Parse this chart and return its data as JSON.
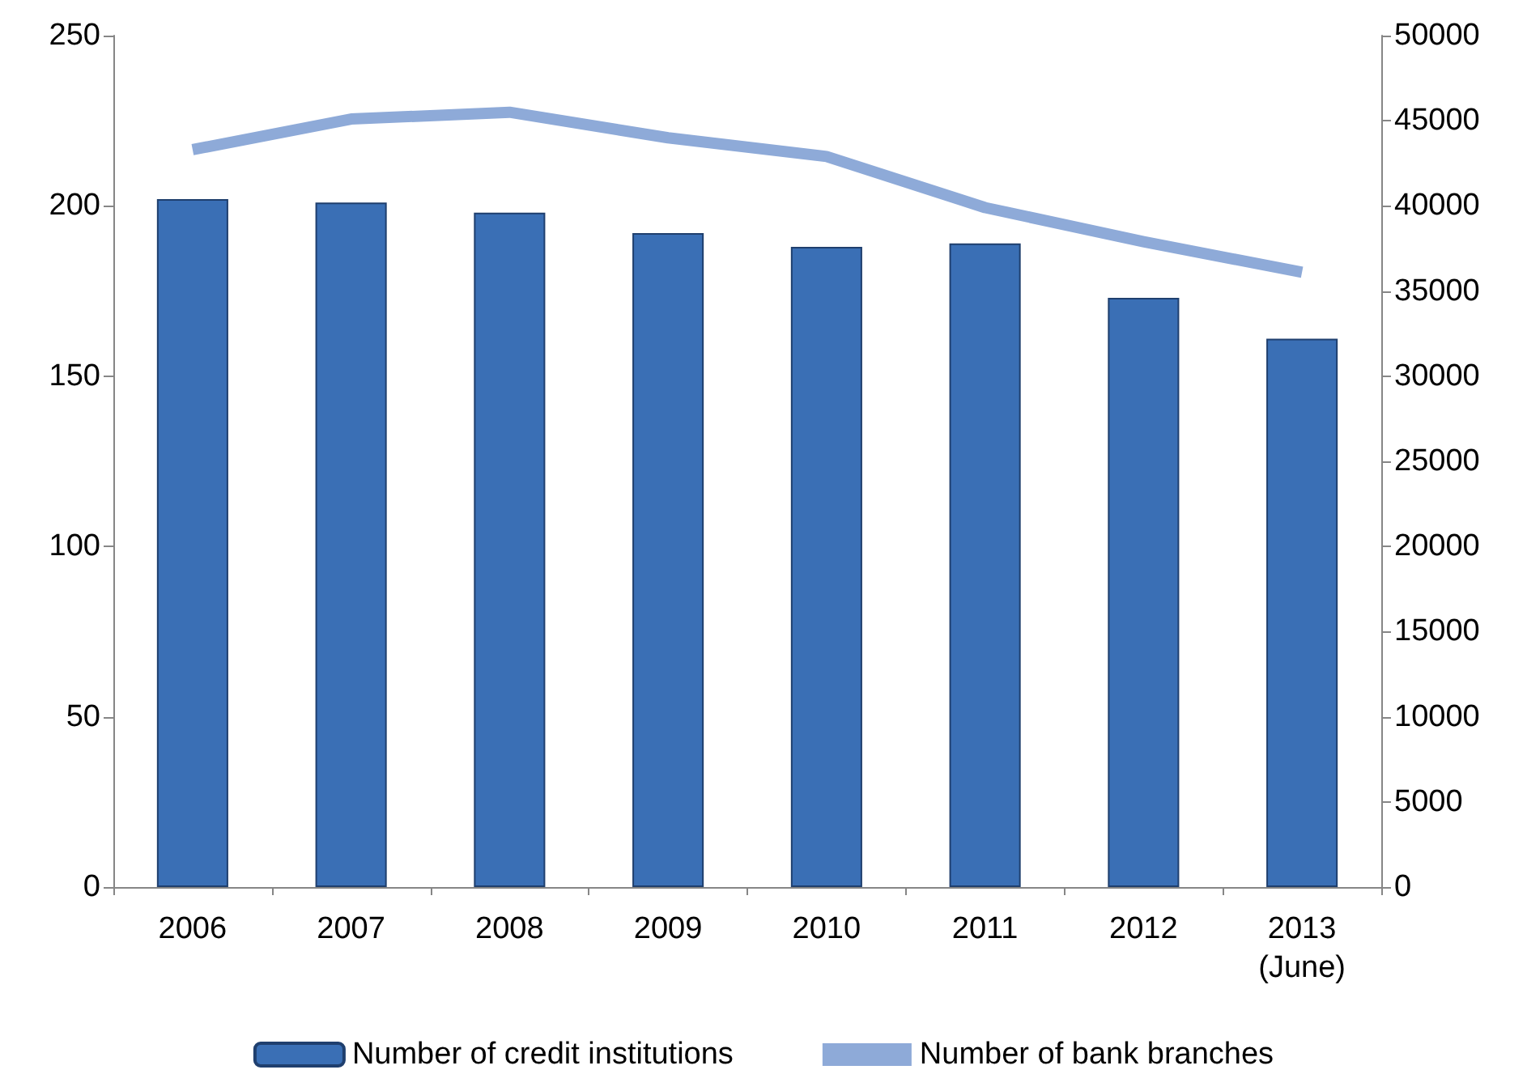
{
  "chart_data": {
    "type": "bar",
    "categories": [
      "2006",
      "2007",
      "2008",
      "2009",
      "2010",
      "2011",
      "2012",
      "2013\n(June)"
    ],
    "series": [
      {
        "name": "Number of credit institutions",
        "color": "#3a6fb5",
        "values": [
          202,
          201,
          198,
          192,
          188,
          189,
          173,
          161
        ]
      },
      {
        "name": "Number of bank branches",
        "type": "line",
        "axis": "y2",
        "color": "#8eaad8",
        "values": [
          43300,
          45100,
          45500,
          44000,
          42900,
          39900,
          37900,
          36100
        ]
      }
    ],
    "ylim": [
      0,
      250
    ],
    "yticks": [
      0,
      50,
      100,
      150,
      200,
      250
    ],
    "y2lim": [
      0,
      50000
    ],
    "y2ticks": [
      0,
      5000,
      10000,
      15000,
      20000,
      25000,
      30000,
      35000,
      40000,
      45000,
      50000
    ],
    "grid": false,
    "legend": "bottom",
    "marker": "none"
  }
}
